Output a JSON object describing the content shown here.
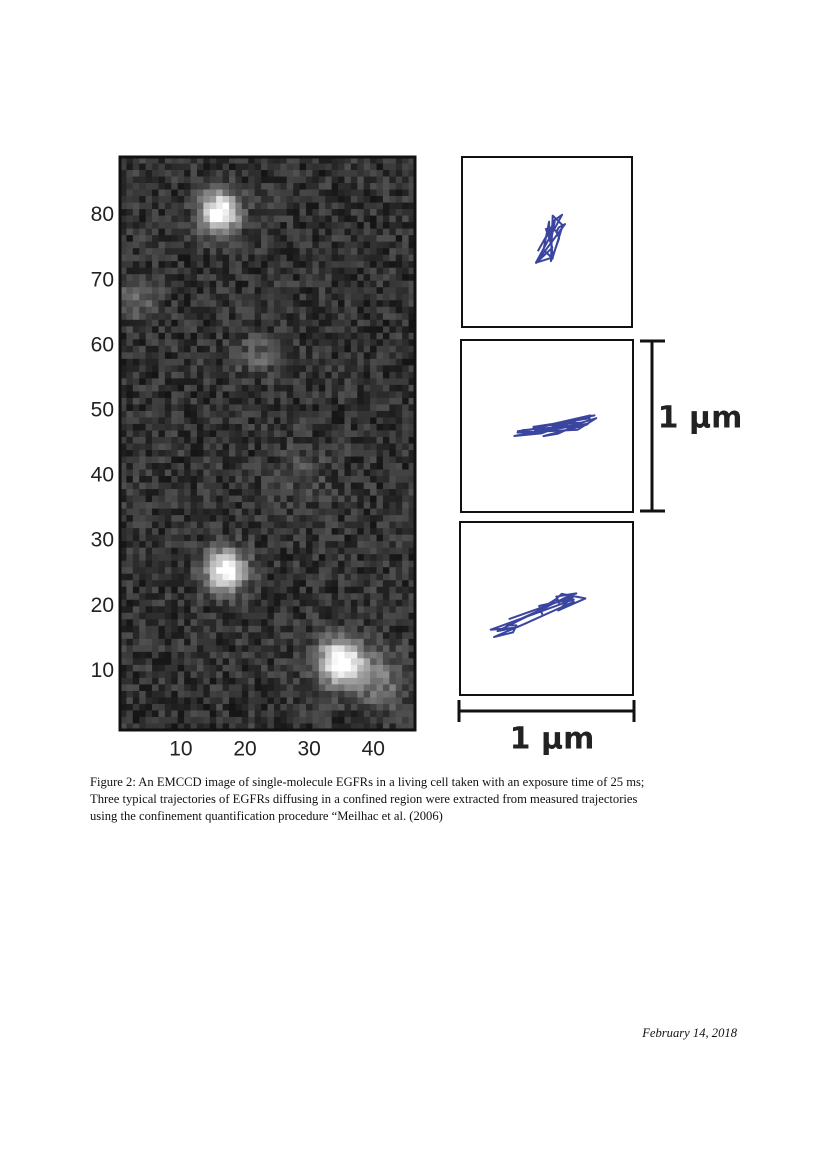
{
  "figure": {
    "image": {
      "yticks": [
        10,
        20,
        30,
        40,
        50,
        60,
        70,
        80
      ],
      "xticks": [
        10,
        20,
        30,
        40
      ],
      "xlim": [
        0.5,
        46.5
      ],
      "ylim": [
        1,
        89
      ]
    },
    "scale_bar_vertical": "1 µm",
    "scale_bar_horizontal": "1 µm",
    "caption": [
      "Figure 2:  An EMCCD image of single-molecule EGFRs in a living cell taken with an exposure time of 25 ms;",
      "Three typical trajectories of EGFRs diffusing in a confined region were extracted from measured trajectories",
      "using the confinement quantification procedure “Meilhac et al. (2006)"
    ]
  },
  "footer": {
    "date": "February 14, 2018"
  }
}
